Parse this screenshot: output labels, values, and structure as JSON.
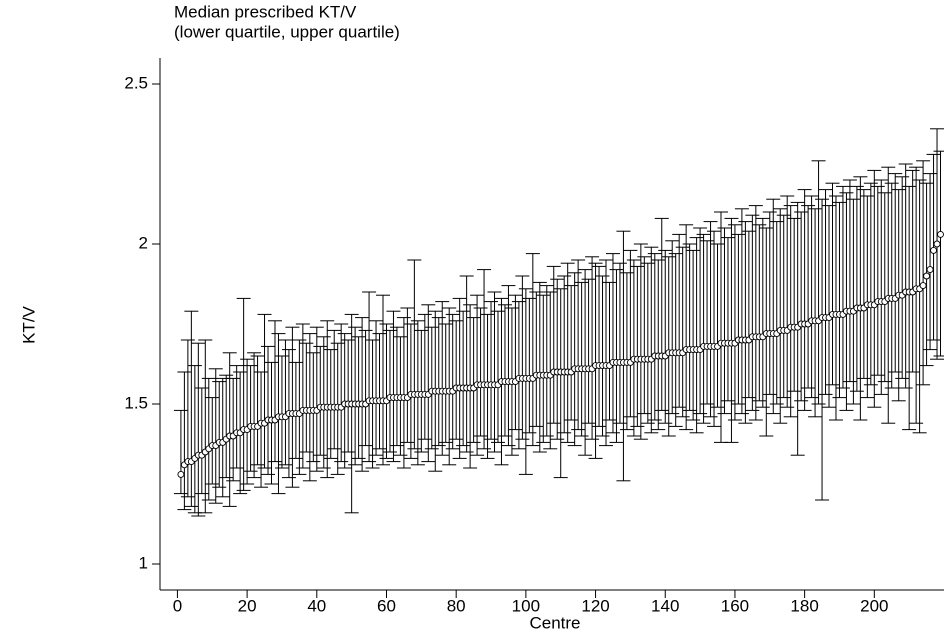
{
  "chart_data": {
    "type": "errorbar",
    "title": "Median prescribed KT/V",
    "subtitle": "(lower quartile, upper quartile)",
    "x_label": "Centre",
    "y_label": "KT/V",
    "xlim": [
      -5,
      220
    ],
    "ylim": [
      0.92,
      2.58
    ],
    "xticks": [
      0,
      20,
      40,
      60,
      80,
      100,
      120,
      140,
      160,
      180,
      200
    ],
    "yticks": [
      1,
      1.5,
      2,
      2.5
    ],
    "x": [
      1,
      2,
      3,
      4,
      5,
      6,
      7,
      8,
      9,
      10,
      11,
      12,
      13,
      14,
      15,
      16,
      17,
      18,
      19,
      20,
      21,
      22,
      23,
      24,
      25,
      26,
      27,
      28,
      29,
      30,
      31,
      32,
      33,
      34,
      35,
      36,
      37,
      38,
      39,
      40,
      41,
      42,
      43,
      44,
      45,
      46,
      47,
      48,
      49,
      50,
      51,
      52,
      53,
      54,
      55,
      56,
      57,
      58,
      59,
      60,
      61,
      62,
      63,
      64,
      65,
      66,
      67,
      68,
      69,
      70,
      71,
      72,
      73,
      74,
      75,
      76,
      77,
      78,
      79,
      80,
      81,
      82,
      83,
      84,
      85,
      86,
      87,
      88,
      89,
      90,
      91,
      92,
      93,
      94,
      95,
      96,
      97,
      98,
      99,
      100,
      101,
      102,
      103,
      104,
      105,
      106,
      107,
      108,
      109,
      110,
      111,
      112,
      113,
      114,
      115,
      116,
      117,
      118,
      119,
      120,
      121,
      122,
      123,
      124,
      125,
      126,
      127,
      128,
      129,
      130,
      131,
      132,
      133,
      134,
      135,
      136,
      137,
      138,
      139,
      140,
      141,
      142,
      143,
      144,
      145,
      146,
      147,
      148,
      149,
      150,
      151,
      152,
      153,
      154,
      155,
      156,
      157,
      158,
      159,
      160,
      161,
      162,
      163,
      164,
      165,
      166,
      167,
      168,
      169,
      170,
      171,
      172,
      173,
      174,
      175,
      176,
      177,
      178,
      179,
      180,
      181,
      182,
      183,
      184,
      185,
      186,
      187,
      188,
      189,
      190,
      191,
      192,
      193,
      194,
      195,
      196,
      197,
      198,
      199,
      200,
      201,
      202,
      203,
      204,
      205,
      206,
      207,
      208,
      209,
      210,
      211,
      212,
      213,
      214,
      215,
      216,
      217,
      218,
      219
    ],
    "median": [
      1.28,
      1.31,
      1.32,
      1.32,
      1.33,
      1.34,
      1.34,
      1.35,
      1.36,
      1.37,
      1.37,
      1.38,
      1.38,
      1.39,
      1.4,
      1.4,
      1.41,
      1.41,
      1.42,
      1.42,
      1.43,
      1.43,
      1.43,
      1.44,
      1.44,
      1.45,
      1.45,
      1.45,
      1.46,
      1.46,
      1.46,
      1.47,
      1.47,
      1.47,
      1.47,
      1.48,
      1.48,
      1.48,
      1.48,
      1.48,
      1.49,
      1.49,
      1.49,
      1.49,
      1.49,
      1.49,
      1.49,
      1.5,
      1.5,
      1.5,
      1.5,
      1.5,
      1.5,
      1.5,
      1.51,
      1.51,
      1.51,
      1.51,
      1.51,
      1.51,
      1.52,
      1.52,
      1.52,
      1.52,
      1.52,
      1.52,
      1.53,
      1.53,
      1.53,
      1.53,
      1.53,
      1.53,
      1.54,
      1.54,
      1.54,
      1.54,
      1.54,
      1.54,
      1.54,
      1.55,
      1.55,
      1.55,
      1.55,
      1.55,
      1.55,
      1.56,
      1.56,
      1.56,
      1.56,
      1.56,
      1.56,
      1.56,
      1.57,
      1.57,
      1.57,
      1.57,
      1.57,
      1.58,
      1.58,
      1.58,
      1.58,
      1.58,
      1.59,
      1.59,
      1.59,
      1.59,
      1.59,
      1.6,
      1.6,
      1.6,
      1.6,
      1.6,
      1.6,
      1.61,
      1.61,
      1.61,
      1.61,
      1.61,
      1.61,
      1.62,
      1.62,
      1.62,
      1.62,
      1.62,
      1.63,
      1.63,
      1.63,
      1.63,
      1.63,
      1.63,
      1.64,
      1.64,
      1.64,
      1.64,
      1.64,
      1.64,
      1.65,
      1.65,
      1.65,
      1.65,
      1.66,
      1.66,
      1.66,
      1.66,
      1.66,
      1.67,
      1.67,
      1.67,
      1.67,
      1.67,
      1.68,
      1.68,
      1.68,
      1.68,
      1.68,
      1.69,
      1.69,
      1.69,
      1.69,
      1.69,
      1.7,
      1.7,
      1.7,
      1.7,
      1.71,
      1.71,
      1.71,
      1.71,
      1.72,
      1.72,
      1.72,
      1.72,
      1.73,
      1.73,
      1.73,
      1.74,
      1.74,
      1.74,
      1.75,
      1.75,
      1.75,
      1.76,
      1.76,
      1.76,
      1.77,
      1.77,
      1.77,
      1.78,
      1.78,
      1.78,
      1.78,
      1.79,
      1.79,
      1.79,
      1.8,
      1.8,
      1.8,
      1.81,
      1.81,
      1.81,
      1.82,
      1.82,
      1.82,
      1.83,
      1.83,
      1.83,
      1.84,
      1.84,
      1.85,
      1.85,
      1.85,
      1.86,
      1.86,
      1.87,
      1.9,
      1.92,
      1.98,
      2.0,
      2.03
    ],
    "lower": [
      1.22,
      1.17,
      1.21,
      1.18,
      1.16,
      1.15,
      1.22,
      1.16,
      1.2,
      1.25,
      1.19,
      1.24,
      1.21,
      1.27,
      1.18,
      1.26,
      1.3,
      1.22,
      1.23,
      1.25,
      1.29,
      1.27,
      1.31,
      1.24,
      1.3,
      1.28,
      1.25,
      1.32,
      1.22,
      1.3,
      1.31,
      1.27,
      1.24,
      1.33,
      1.28,
      1.3,
      1.35,
      1.26,
      1.32,
      1.29,
      1.34,
      1.3,
      1.27,
      1.33,
      1.36,
      1.28,
      1.32,
      1.3,
      1.35,
      1.16,
      1.31,
      1.33,
      1.29,
      1.37,
      1.32,
      1.3,
      1.34,
      1.36,
      1.31,
      1.33,
      1.35,
      1.32,
      1.37,
      1.34,
      1.3,
      1.38,
      1.33,
      1.36,
      1.31,
      1.35,
      1.39,
      1.32,
      1.36,
      1.29,
      1.37,
      1.34,
      1.38,
      1.31,
      1.36,
      1.39,
      1.33,
      1.37,
      1.35,
      1.3,
      1.38,
      1.34,
      1.4,
      1.36,
      1.33,
      1.39,
      1.35,
      1.38,
      1.31,
      1.4,
      1.37,
      1.34,
      1.42,
      1.36,
      1.39,
      1.28,
      1.41,
      1.37,
      1.43,
      1.35,
      1.38,
      1.4,
      1.36,
      1.44,
      1.39,
      1.27,
      1.41,
      1.38,
      1.45,
      1.37,
      1.42,
      1.4,
      1.34,
      1.44,
      1.39,
      1.33,
      1.43,
      1.4,
      1.37,
      1.45,
      1.41,
      1.38,
      1.44,
      1.26,
      1.42,
      1.46,
      1.4,
      1.43,
      1.39,
      1.47,
      1.44,
      1.41,
      1.45,
      1.42,
      1.48,
      1.44,
      1.4,
      1.47,
      1.43,
      1.49,
      1.46,
      1.42,
      1.48,
      1.45,
      1.41,
      1.47,
      1.44,
      1.5,
      1.46,
      1.43,
      1.49,
      1.38,
      1.47,
      1.51,
      1.38,
      1.45,
      1.5,
      1.47,
      1.44,
      1.52,
      1.48,
      1.45,
      1.51,
      1.49,
      1.4,
      1.53,
      1.47,
      1.5,
      1.44,
      1.52,
      1.49,
      1.46,
      1.54,
      1.34,
      1.51,
      1.48,
      1.55,
      1.52,
      1.46,
      1.5,
      1.2,
      1.53,
      1.49,
      1.56,
      1.45,
      1.52,
      1.55,
      1.48,
      1.57,
      1.5,
      1.54,
      1.45,
      1.58,
      1.52,
      1.56,
      1.49,
      1.59,
      1.53,
      1.57,
      1.44,
      1.55,
      1.6,
      1.51,
      1.58,
      1.55,
      1.42,
      1.6,
      1.44,
      1.41,
      1.56,
      1.62,
      1.67,
      1.7,
      1.64,
      1.65
    ],
    "upper": [
      1.48,
      1.6,
      1.7,
      1.79,
      1.62,
      1.69,
      1.55,
      1.7,
      1.58,
      1.52,
      1.61,
      1.57,
      1.58,
      1.59,
      1.66,
      1.58,
      1.62,
      1.6,
      1.83,
      1.64,
      1.62,
      1.66,
      1.65,
      1.6,
      1.78,
      1.68,
      1.63,
      1.76,
      1.72,
      1.65,
      1.7,
      1.67,
      1.74,
      1.63,
      1.7,
      1.75,
      1.69,
      1.72,
      1.66,
      1.74,
      1.68,
      1.71,
      1.76,
      1.67,
      1.73,
      1.69,
      1.75,
      1.72,
      1.7,
      1.78,
      1.74,
      1.71,
      1.77,
      1.73,
      1.85,
      1.7,
      1.76,
      1.72,
      1.84,
      1.75,
      1.73,
      1.79,
      1.74,
      1.71,
      1.77,
      1.8,
      1.75,
      1.95,
      1.76,
      1.73,
      1.78,
      1.81,
      1.74,
      1.79,
      1.77,
      1.82,
      1.75,
      1.8,
      1.78,
      1.76,
      1.83,
      1.79,
      1.9,
      1.81,
      1.77,
      1.84,
      1.8,
      1.92,
      1.78,
      1.82,
      1.85,
      1.79,
      1.83,
      1.81,
      1.87,
      1.8,
      1.84,
      1.82,
      1.9,
      1.86,
      1.83,
      1.97,
      1.85,
      1.88,
      1.84,
      1.87,
      1.85,
      1.93,
      1.89,
      1.86,
      1.9,
      1.94,
      1.87,
      1.91,
      1.95,
      1.88,
      1.92,
      1.89,
      1.96,
      1.94,
      1.93,
      1.9,
      1.95,
      1.88,
      1.97,
      1.92,
      1.94,
      2.04,
      1.91,
      1.98,
      1.95,
      1.93,
      2.0,
      1.96,
      1.94,
      1.99,
      1.97,
      1.95,
      2.08,
      1.98,
      1.96,
      2.01,
      1.97,
      2.03,
      1.99,
      2.06,
      2.0,
      1.98,
      2.02,
      2.05,
      2.03,
      2.01,
      2.07,
      2.04,
      2.0,
      2.1,
      2.05,
      2.02,
      2.08,
      2.06,
      2.03,
      2.11,
      2.07,
      2.04,
      2.09,
      2.12,
      2.06,
      2.08,
      2.05,
      2.1,
      2.14,
      2.07,
      2.11,
      2.09,
      2.15,
      2.12,
      2.08,
      2.13,
      2.1,
      2.17,
      2.12,
      2.15,
      2.11,
      2.26,
      2.14,
      2.17,
      2.12,
      2.19,
      2.15,
      2.13,
      2.18,
      2.16,
      2.2,
      2.14,
      2.18,
      2.21,
      2.17,
      2.15,
      2.19,
      2.23,
      2.18,
      2.2,
      2.16,
      2.24,
      2.19,
      2.22,
      2.17,
      2.21,
      2.25,
      2.18,
      2.23,
      2.24,
      2.2,
      2.26,
      2.19,
      2.22,
      2.28,
      2.36,
      2.29
    ]
  }
}
